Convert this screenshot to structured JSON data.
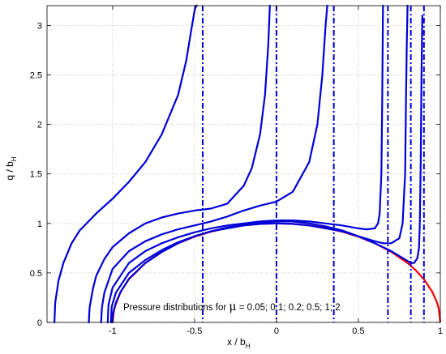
{
  "chart_data": {
    "type": "line",
    "xlabel": "x / b",
    "xlabel_sub": "H",
    "ylabel": "q / b",
    "ylabel_sub": "H",
    "xlim": [
      -1.4,
      1
    ],
    "ylim": [
      0,
      3.2
    ],
    "xticks": [
      -1,
      -0.5,
      0,
      0.5,
      1
    ],
    "xtick_labels": [
      "-1",
      "-0.5",
      "0",
      "0.5",
      "1"
    ],
    "yticks": [
      0,
      0.5,
      1,
      1.5,
      2,
      2.5,
      3
    ],
    "ytick_labels": [
      "0",
      "0.5",
      "1",
      "1.5",
      "2",
      "2.5",
      "3"
    ],
    "grid": true,
    "annotation": {
      "text_pre": "Pressure distributions for  ",
      "mu": "μ",
      "text_post": " = 0.05; 0.1; 0.2; 0.5; 1; 2"
    },
    "colors": {
      "curves": "#0000d8",
      "hertz": "#ff0000",
      "grid": "#b0b0b0"
    },
    "vertical_dashed_lines_x": [
      -0.45,
      0.0,
      0.35,
      0.68,
      0.82,
      0.9
    ],
    "series": [
      {
        "x": [
          -1.355,
          -1.35,
          -1.33,
          -1.3,
          -1.25,
          -1.2,
          -1.1,
          -1.0,
          -0.9,
          -0.8,
          -0.7,
          -0.6,
          -0.55,
          -0.52,
          -0.5,
          -0.49,
          -0.485
        ],
        "y": [
          0.0,
          0.2,
          0.42,
          0.6,
          0.8,
          0.93,
          1.1,
          1.25,
          1.42,
          1.62,
          1.9,
          2.3,
          2.65,
          2.95,
          3.15,
          3.2,
          3.2
        ]
      },
      {
        "x": [
          -1.145,
          -1.14,
          -1.12,
          -1.1,
          -1.05,
          -1.0,
          -0.9,
          -0.8,
          -0.7,
          -0.6,
          -0.5,
          -0.4,
          -0.3,
          -0.2,
          -0.15,
          -0.1,
          -0.07,
          -0.05,
          -0.04
        ],
        "y": [
          0.0,
          0.15,
          0.34,
          0.47,
          0.64,
          0.76,
          0.9,
          1.0,
          1.06,
          1.1,
          1.13,
          1.15,
          1.2,
          1.38,
          1.56,
          1.9,
          2.3,
          2.8,
          3.2
        ]
      },
      {
        "x": [
          -1.07,
          -1.065,
          -1.05,
          -1.0,
          -0.9,
          -0.8,
          -0.7,
          -0.6,
          -0.5,
          -0.4,
          -0.3,
          -0.2,
          -0.1,
          0.0,
          0.1,
          0.2,
          0.25,
          0.28,
          0.3,
          0.31
        ],
        "y": [
          0.0,
          0.15,
          0.3,
          0.54,
          0.72,
          0.82,
          0.89,
          0.94,
          0.98,
          1.02,
          1.07,
          1.13,
          1.18,
          1.22,
          1.32,
          1.62,
          2.0,
          2.5,
          3.0,
          3.2
        ]
      },
      {
        "x": [
          -1.03,
          -1.025,
          -1.0,
          -0.9,
          -0.8,
          -0.7,
          -0.6,
          -0.5,
          -0.4,
          -0.3,
          -0.2,
          -0.1,
          0.0,
          0.1,
          0.2,
          0.3,
          0.4,
          0.5,
          0.55,
          0.6,
          0.62,
          0.63,
          0.64,
          0.645,
          0.65
        ],
        "y": [
          0.0,
          0.18,
          0.35,
          0.6,
          0.72,
          0.8,
          0.86,
          0.91,
          0.95,
          0.98,
          1.0,
          1.02,
          1.03,
          1.03,
          1.02,
          1.0,
          0.98,
          0.95,
          0.94,
          0.95,
          1.0,
          1.1,
          1.5,
          2.2,
          3.2
        ]
      },
      {
        "x": [
          -1.01,
          -1.005,
          -0.98,
          -0.9,
          -0.8,
          -0.7,
          -0.6,
          -0.5,
          -0.4,
          -0.3,
          -0.2,
          -0.1,
          0.0,
          0.1,
          0.2,
          0.3,
          0.4,
          0.5,
          0.6,
          0.65,
          0.7,
          0.75,
          0.77,
          0.785,
          0.79,
          0.795,
          0.8
        ],
        "y": [
          0.0,
          0.16,
          0.3,
          0.5,
          0.63,
          0.73,
          0.81,
          0.87,
          0.92,
          0.96,
          0.99,
          1.01,
          1.02,
          1.02,
          1.0,
          0.97,
          0.93,
          0.87,
          0.82,
          0.8,
          0.8,
          0.85,
          1.0,
          1.5,
          2.2,
          2.8,
          3.2
        ]
      },
      {
        "x": [
          -1.0,
          -0.998,
          -0.98,
          -0.95,
          -0.9,
          -0.8,
          -0.7,
          -0.6,
          -0.5,
          -0.4,
          -0.3,
          -0.2,
          -0.1,
          0.0,
          0.1,
          0.2,
          0.3,
          0.4,
          0.5,
          0.6,
          0.7,
          0.75,
          0.8,
          0.82,
          0.84,
          0.86,
          0.87,
          0.875,
          0.88,
          0.885,
          0.89
        ],
        "y": [
          0.0,
          0.08,
          0.2,
          0.31,
          0.44,
          0.6,
          0.71,
          0.8,
          0.87,
          0.92,
          0.95,
          0.98,
          0.995,
          1.0,
          0.995,
          0.98,
          0.95,
          0.92,
          0.87,
          0.8,
          0.72,
          0.67,
          0.62,
          0.6,
          0.6,
          0.65,
          0.75,
          1.0,
          1.6,
          2.5,
          3.1
        ]
      }
    ],
    "hertz": {
      "x": [
        -1.0,
        -0.99,
        -0.95,
        -0.9,
        -0.8,
        -0.7,
        -0.6,
        -0.5,
        -0.4,
        -0.3,
        -0.2,
        -0.1,
        0.0,
        0.1,
        0.2,
        0.3,
        0.4,
        0.5,
        0.6,
        0.7,
        0.8,
        0.85,
        0.9,
        0.95,
        0.98,
        0.99,
        1.0
      ],
      "y": [
        0.0,
        0.141,
        0.312,
        0.436,
        0.6,
        0.714,
        0.8,
        0.866,
        0.917,
        0.954,
        0.98,
        0.995,
        1.0,
        0.995,
        0.98,
        0.954,
        0.917,
        0.866,
        0.8,
        0.714,
        0.6,
        0.527,
        0.436,
        0.312,
        0.199,
        0.141,
        0.0
      ]
    }
  }
}
